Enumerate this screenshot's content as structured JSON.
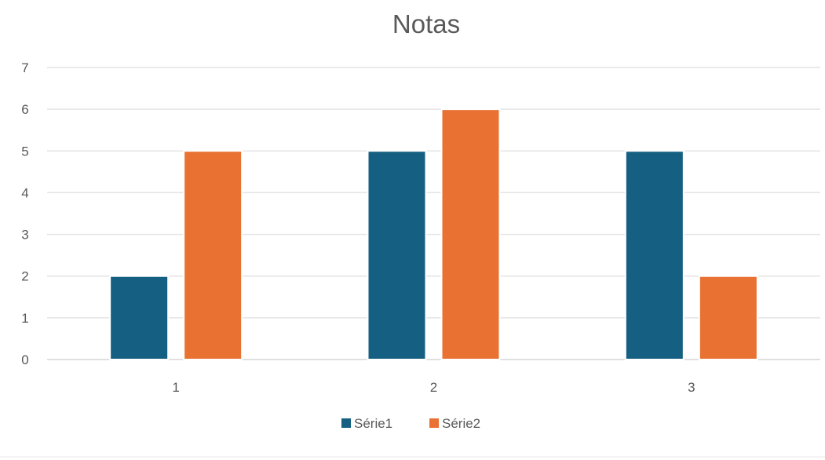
{
  "chart_data": {
    "type": "bar",
    "title": "Notas",
    "xlabel": "",
    "ylabel": "",
    "categories": [
      "1",
      "2",
      "3"
    ],
    "series": [
      {
        "name": "Série1",
        "values": [
          2,
          5,
          5
        ],
        "color": "#156082"
      },
      {
        "name": "Série2",
        "values": [
          5,
          6,
          2
        ],
        "color": "#E97132"
      }
    ],
    "ylim": [
      0,
      7
    ],
    "yticks": [
      "0",
      "1",
      "2",
      "3",
      "4",
      "5",
      "6",
      "7"
    ],
    "grid": true,
    "legend_position": "bottom"
  }
}
